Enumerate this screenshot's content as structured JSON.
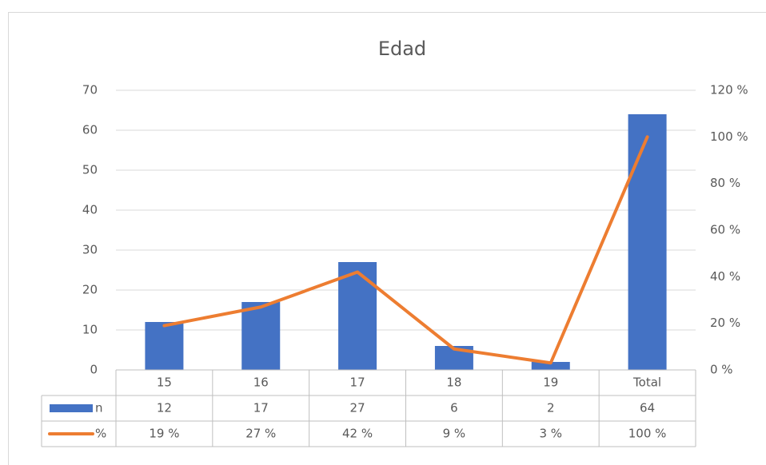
{
  "chart_data": {
    "type": "bar",
    "title": "Edad",
    "categories": [
      "15",
      "16",
      "17",
      "18",
      "19",
      "Total"
    ],
    "series": [
      {
        "name": "n",
        "type": "bar",
        "color": "#4472c4",
        "values": [
          12,
          17,
          27,
          6,
          2,
          64
        ]
      },
      {
        "name": "%",
        "type": "line",
        "axis": "y2",
        "color": "#ed7d31",
        "values": [
          19,
          27,
          42,
          9,
          3,
          100
        ],
        "value_labels": [
          "19 %",
          "27 %",
          "42 %",
          "9 %",
          "3 %",
          "100 %"
        ]
      }
    ],
    "ylim": [
      0,
      70
    ],
    "yticks": [
      0,
      10,
      20,
      30,
      40,
      50,
      60,
      70
    ],
    "y2lim": [
      0,
      120
    ],
    "y2ticks": [
      {
        "value": 0,
        "label": "0 %"
      },
      {
        "value": 20,
        "label": "20 %"
      },
      {
        "value": 40,
        "label": "40 %"
      },
      {
        "value": 60,
        "label": "60 %"
      },
      {
        "value": 80,
        "label": "80 %"
      },
      {
        "value": 100,
        "label": "100 %"
      },
      {
        "value": 120,
        "label": "120 %"
      }
    ],
    "grid": true,
    "data_table": true
  }
}
